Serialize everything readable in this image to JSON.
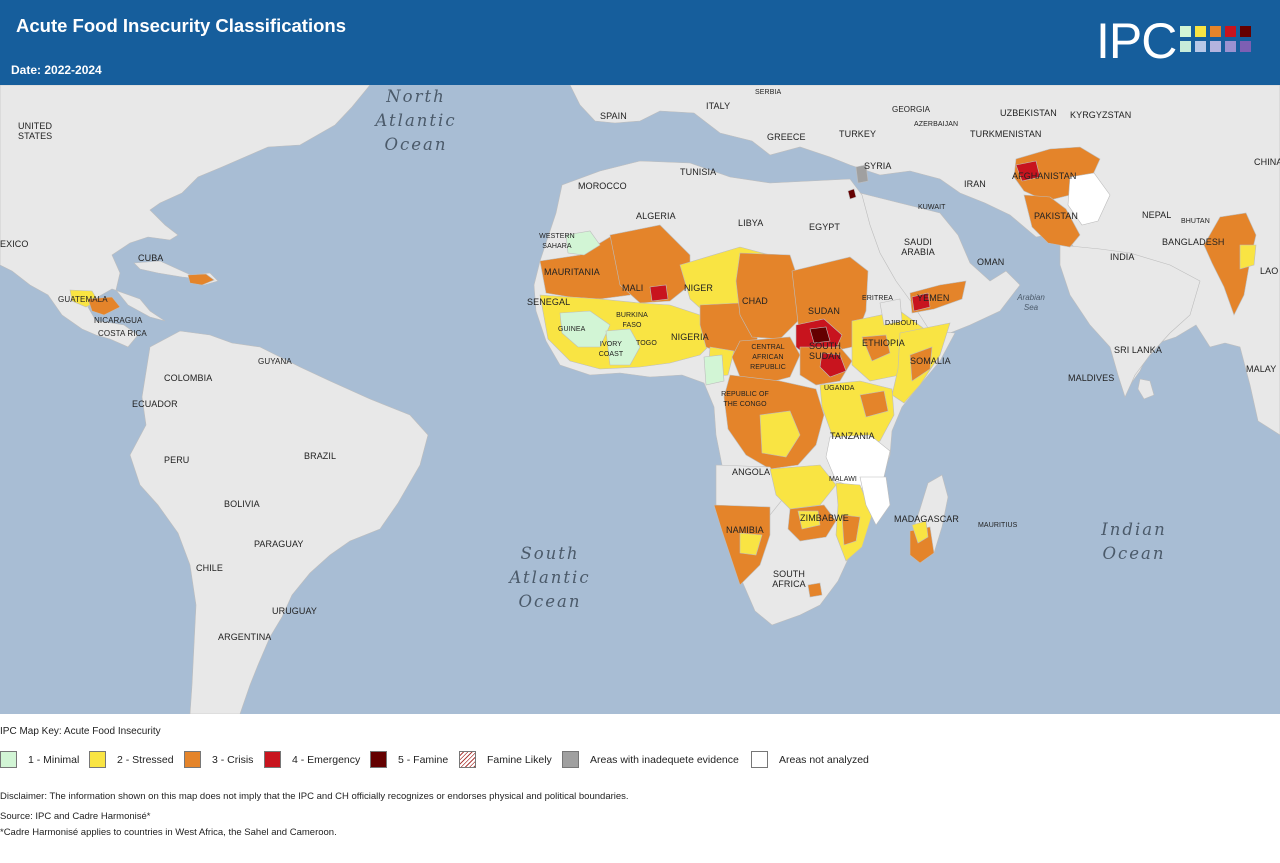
{
  "header": {
    "title": "Acute Food Insecurity Classifications",
    "date": "Date: 2022-2024",
    "logo_text": "IPC",
    "logo_colors": [
      "#d2f5d5",
      "#f9e443",
      "#e4842a",
      "#c8141e",
      "#640000",
      "#c7ecd9",
      "#b7c8e8",
      "#b3b3de",
      "#9a92d1",
      "#7d5fb3"
    ]
  },
  "map": {
    "oceans": [
      {
        "line1": "North",
        "line2": "Atlantic",
        "line3": "Ocean"
      },
      {
        "line1": "South",
        "line2": "Atlantic",
        "line3": "Ocean"
      },
      {
        "line1": "Indian",
        "line2": "Ocean"
      }
    ],
    "seas": [
      {
        "line1": "Arabian",
        "line2": "Sea"
      }
    ],
    "countries": [
      "UNITED STATES",
      "EXICO",
      "CUBA",
      "GUATEMALA",
      "NICARAGUA",
      "COSTA RICA",
      "GUYANA",
      "COLOMBIA",
      "ECUADOR",
      "PERU",
      "BRAZIL",
      "BOLIVIA",
      "PARAGUAY",
      "CHILE",
      "URUGUAY",
      "ARGENTINA",
      "SPAIN",
      "ITALY",
      "SERBIA",
      "GREECE",
      "TURKEY",
      "GEORGIA",
      "AZERBAIJAN",
      "UZBEKISTAN",
      "KYRGYZSTAN",
      "TURKMENISTAN",
      "CHINA",
      "SYRIA",
      "IRAN",
      "AFGHANISTAN",
      "PAKISTAN",
      "NEPAL",
      "BHUTAN",
      "BANGLADESH",
      "INDIA",
      "LAO",
      "SRI LANKA",
      "MALDIVES",
      "MALAY",
      "KUWAIT",
      "SAUDI ARABIA",
      "OMAN",
      "YEMEN",
      "MOROCCO",
      "TUNISIA",
      "ALGERIA",
      "LIBYA",
      "EGYPT",
      "WESTERN SAHARA",
      "MAURITANIA",
      "MALI",
      "NIGER",
      "CHAD",
      "SUDAN",
      "ERITREA",
      "DJIBOUTI",
      "ETHIOPIA",
      "SOMALIA",
      "SENEGAL",
      "GUINEA",
      "BURKINA FASO",
      "IVORY COAST",
      "TOGO",
      "NIGERIA",
      "CENTRAL AFRICAN REPUBLIC",
      "SOUTH SUDAN",
      "UGANDA",
      "REPUBLIC OF THE CONGO",
      "TANZANIA",
      "ANGOLA",
      "MALAWI",
      "ZIMBABWE",
      "NAMIBIA",
      "SOUTH AFRICA",
      "MADAGASCAR",
      "MAURITIUS"
    ],
    "phase_colors": {
      "minimal": "#d2f5d5",
      "stressed": "#f9e443",
      "crisis": "#e4842a",
      "emergency": "#c8141e",
      "famine": "#640000",
      "inadequate": "#a0a0a0",
      "not_analyzed": "#ffffff",
      "land": "#e8e8e8",
      "water": "#a8bdd4"
    }
  },
  "legend": {
    "title": "IPC Map Key: Acute Food Insecurity",
    "items": [
      {
        "label": "1 - Minimal",
        "color": "#d2f5d5",
        "pattern": "none"
      },
      {
        "label": "2 - Stressed",
        "color": "#f9e443",
        "pattern": "none"
      },
      {
        "label": "3 - Crisis",
        "color": "#e4842a",
        "pattern": "none"
      },
      {
        "label": "4 - Emergency",
        "color": "#c8141e",
        "pattern": "none"
      },
      {
        "label": "5 - Famine",
        "color": "#640000",
        "pattern": "none"
      },
      {
        "label": "Famine Likely",
        "color": "#ffffff",
        "pattern": "hatch"
      },
      {
        "label": "Areas with inadequete evidence",
        "color": "#a0a0a0",
        "pattern": "none"
      },
      {
        "label": "Areas not analyzed",
        "color": "#ffffff",
        "pattern": "none"
      }
    ]
  },
  "footer": {
    "disclaimer": "Disclaimer: The information shown on this map does not imply that the IPC and CH officially recognizes or endorses physical and political boundaries.",
    "source": "Source: IPC and Cadre Harmonisé*",
    "note": "*Cadre Harmonisé applies to countries in West Africa, the Sahel and Cameroon."
  }
}
